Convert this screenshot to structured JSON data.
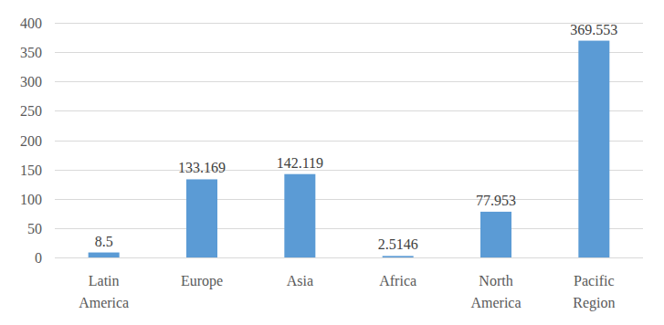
{
  "chart_data": {
    "type": "bar",
    "categories": [
      "Latin America",
      "Europe",
      "Asia",
      "Africa",
      "North America",
      "Pacific Region"
    ],
    "values": [
      8.5,
      133.169,
      142.119,
      2.5146,
      77.953,
      369.553
    ],
    "color": "#5b9bd5",
    "ylim": [
      0,
      400
    ],
    "yticks": [
      0,
      50,
      100,
      150,
      200,
      250,
      300,
      350,
      400
    ],
    "grid": true,
    "data_labels": true
  }
}
